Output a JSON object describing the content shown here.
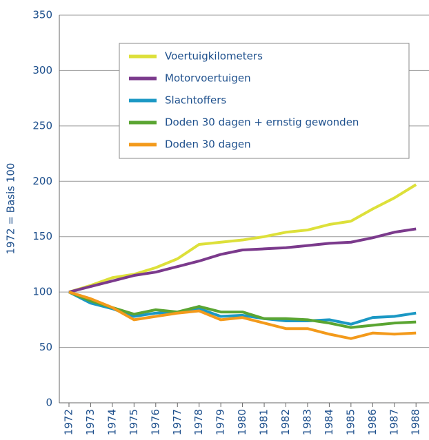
{
  "chart_data": {
    "type": "line",
    "y_label": "1972 = Basis 100",
    "categories": [
      "1972",
      "1973",
      "1974",
      "1975",
      "1976",
      "1977",
      "1978",
      "1979",
      "1980",
      "1981",
      "1982",
      "1983",
      "1984",
      "1985",
      "1986",
      "1987",
      "1988"
    ],
    "series": [
      {
        "name": "Voertuigkilometers",
        "color": "#dde03a",
        "values": [
          100,
          106,
          113,
          116,
          122,
          130,
          143,
          145,
          147,
          150,
          154,
          156,
          161,
          164,
          175,
          185,
          197
        ]
      },
      {
        "name": "Motorvoertuigen",
        "color": "#7b3a8c",
        "values": [
          100,
          105,
          110,
          115,
          118,
          123,
          128,
          134,
          138,
          139,
          140,
          142,
          144,
          145,
          149,
          154,
          157
        ]
      },
      {
        "name": "Slachtoffers",
        "color": "#1b98c4",
        "values": [
          100,
          90,
          85,
          78,
          81,
          82,
          85,
          78,
          79,
          76,
          74,
          74,
          75,
          71,
          77,
          78,
          81
        ]
      },
      {
        "name": "Doden 30 dagen + ernstig gewonden",
        "color": "#5aa532",
        "values": [
          100,
          92,
          86,
          80,
          84,
          82,
          87,
          82,
          82,
          76,
          76,
          75,
          72,
          68,
          70,
          72,
          73
        ]
      },
      {
        "name": "Doden 30 dagen",
        "color": "#f39a1b",
        "values": [
          100,
          94,
          86,
          75,
          78,
          81,
          83,
          75,
          77,
          72,
          67,
          67,
          62,
          58,
          63,
          62,
          63
        ]
      }
    ],
    "ylim": [
      0,
      350
    ],
    "yticks": [
      0,
      50,
      100,
      150,
      200,
      250,
      300,
      350
    ],
    "grid": true,
    "legend": "upper center"
  }
}
